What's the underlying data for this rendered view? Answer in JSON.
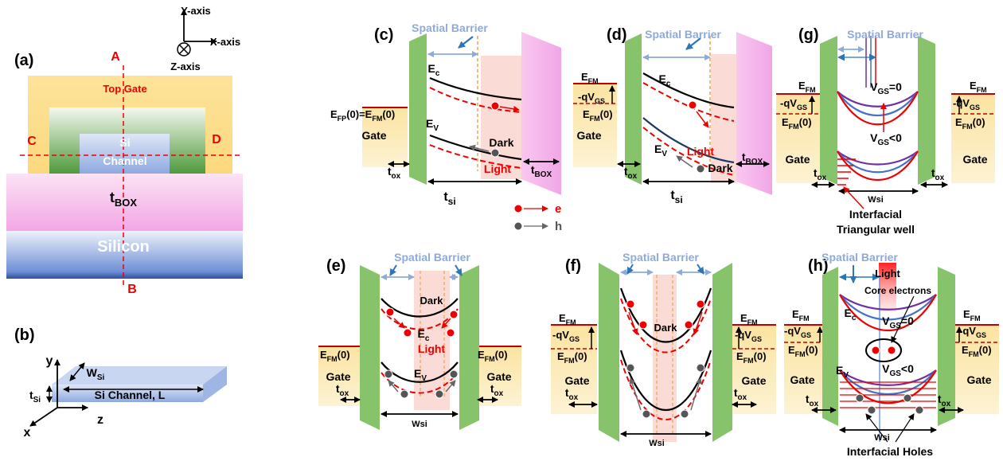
{
  "panel_a": {
    "texts": [
      [
        "(a)"
      ],
      [
        "Y-axis"
      ],
      [
        "X-axis"
      ],
      [
        "Z-axis"
      ],
      [
        "A"
      ],
      [
        "B"
      ],
      [
        "C"
      ],
      [
        "D"
      ],
      [
        "Top Gate"
      ],
      [
        "Si"
      ],
      [
        "Channel"
      ],
      [
        "t",
        "BOX"
      ],
      [
        "Silicon"
      ]
    ]
  },
  "panel_b": {
    "texts": [
      [
        "(b)"
      ],
      [
        "y"
      ],
      [
        "x"
      ],
      [
        "z"
      ],
      [
        "W",
        "Si"
      ],
      [
        "t",
        "Si"
      ],
      [
        "Si Channel, L"
      ]
    ]
  },
  "panel_c": {
    "texts": [
      [
        "(c)"
      ],
      [
        "Spatial Barrier"
      ],
      [
        "E",
        "c"
      ],
      [
        "E",
        "V"
      ],
      [
        "E",
        "FP",
        "(0)=E",
        "FM",
        "(0)"
      ],
      [
        "Gate"
      ],
      [
        "t",
        "ox"
      ],
      [
        "Dark"
      ],
      [
        "Light"
      ],
      [
        "t",
        "BOX"
      ],
      [
        "t",
        "si"
      ]
    ]
  },
  "legend": {
    "texts": [
      [
        "e"
      ],
      [
        "h"
      ]
    ]
  },
  "panel_d": {
    "texts": [
      [
        "(d)"
      ],
      [
        "Spatial Barrier"
      ],
      [
        "E",
        "FM"
      ],
      [
        "-qV",
        "GS"
      ],
      [
        "E",
        "FM",
        "(0)"
      ],
      [
        "Gate"
      ],
      [
        "t",
        "ox"
      ],
      [
        "E",
        "c"
      ],
      [
        "E",
        "V"
      ],
      [
        "Light"
      ],
      [
        "Dark"
      ],
      [
        "t",
        "BOX"
      ],
      [
        "t",
        "si"
      ]
    ]
  },
  "panel_g": {
    "texts": [
      [
        "(g)"
      ],
      [
        "Spatial Barrier"
      ],
      [
        "E",
        "FM"
      ],
      [
        "-qV",
        "GS"
      ],
      [
        "E",
        "FM",
        "(0)"
      ],
      [
        "E",
        "FM"
      ],
      [
        "-qV",
        "GS"
      ],
      [
        "E",
        "FM",
        "(0)"
      ],
      [
        "V",
        "GS",
        "=0"
      ],
      [
        "V",
        "GS",
        "<0"
      ],
      [
        "Gate"
      ],
      [
        "Gate"
      ],
      [
        "t",
        "ox"
      ],
      [
        "t",
        "ox"
      ],
      [
        "Wsi"
      ],
      [
        "Interfacial"
      ],
      [
        "Triangular well"
      ]
    ]
  },
  "panel_e": {
    "texts": [
      [
        "(e)"
      ],
      [
        "Spatial Barrier"
      ],
      [
        "Dark"
      ],
      [
        "E",
        "c"
      ],
      [
        "Light"
      ],
      [
        "E",
        "V"
      ],
      [
        "E",
        "FM",
        "(0)"
      ],
      [
        "Gate"
      ],
      [
        "t",
        "ox"
      ],
      [
        "E",
        "FM",
        "(0)"
      ],
      [
        "Gate"
      ],
      [
        "t",
        "ox"
      ],
      [
        "Wsi"
      ]
    ]
  },
  "panel_f": {
    "texts": [
      [
        "(f)"
      ],
      [
        "Spatial Barrier"
      ],
      [
        "E",
        "FM"
      ],
      [
        "-qV",
        "GS"
      ],
      [
        "E",
        "FM",
        "(0)"
      ],
      [
        "Gate"
      ],
      [
        "t",
        "ox"
      ],
      [
        "E",
        "FM"
      ],
      [
        "-qV",
        "GS"
      ],
      [
        "E",
        "FM",
        "(0)"
      ],
      [
        "Gate"
      ],
      [
        "t",
        "ox"
      ],
      [
        "Dark"
      ],
      [
        "Wsi"
      ]
    ]
  },
  "panel_h": {
    "texts": [
      [
        "(h)"
      ],
      [
        "Spatial Barrier"
      ],
      [
        "Light"
      ],
      [
        "Core electrons"
      ],
      [
        "E",
        "FM"
      ],
      [
        "-qV",
        "GS"
      ],
      [
        "E",
        "FM",
        "(0)"
      ],
      [
        "Gate"
      ],
      [
        "t",
        "ox"
      ],
      [
        "E",
        "c"
      ],
      [
        "V",
        "GS",
        "=0"
      ],
      [
        "V",
        "GS",
        "<0"
      ],
      [
        "E",
        "V"
      ],
      [
        "E",
        "FM"
      ],
      [
        "-qV",
        "GS"
      ],
      [
        "E",
        "FM",
        "(0)"
      ],
      [
        "Gate"
      ],
      [
        "t",
        "ox"
      ],
      [
        "Wsi"
      ],
      [
        "Interfacial Holes"
      ]
    ]
  }
}
